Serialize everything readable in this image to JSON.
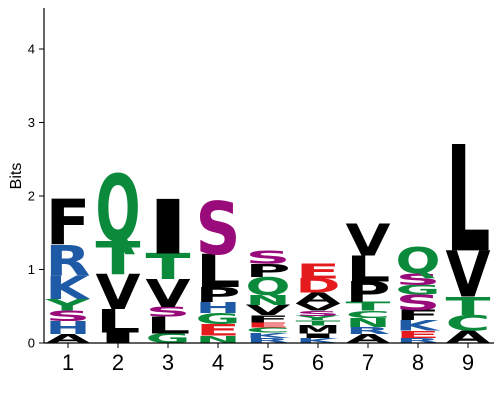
{
  "chart_data": {
    "type": "sequence-logo",
    "ylabel": "Bits",
    "ylim": [
      0,
      4.6
    ],
    "yticks": [
      "0",
      "1",
      "2",
      "3",
      "4"
    ],
    "colors": {
      "A": "#000000",
      "C": "#0b8a3c",
      "D": "#e41a1c",
      "E": "#e41a1c",
      "F": "#000000",
      "G": "#0b8a3c",
      "H": "#1f5aa6",
      "I": "#000000",
      "K": "#1f5aa6",
      "L": "#000000",
      "M": "#000000",
      "N": "#0b8a3c",
      "P": "#000000",
      "Q": "#0b8a3c",
      "R": "#1f5aa6",
      "S": "#990a7a",
      "T": "#0b8a3c",
      "V": "#000000",
      "W": "#000000",
      "Y": "#0b8a3c"
    },
    "positions": [
      {
        "label": "1",
        "stack": [
          {
            "letter": "A",
            "height": 0.12
          },
          {
            "letter": "H",
            "height": 0.18
          },
          {
            "letter": "S",
            "height": 0.14
          },
          {
            "letter": "Y",
            "height": 0.16
          },
          {
            "letter": "K",
            "height": 0.32
          },
          {
            "letter": "R",
            "height": 0.42
          },
          {
            "letter": "F",
            "height": 0.62
          }
        ]
      },
      {
        "label": "2",
        "stack": [
          {
            "letter": "I",
            "height": 0.14
          },
          {
            "letter": "L",
            "height": 0.32
          },
          {
            "letter": "V",
            "height": 0.48
          },
          {
            "letter": "T",
            "height": 0.45
          },
          {
            "letter": "Q",
            "height": 0.91
          }
        ]
      },
      {
        "label": "3",
        "stack": [
          {
            "letter": "G",
            "height": 0.13
          },
          {
            "letter": "L",
            "height": 0.23
          },
          {
            "letter": "S",
            "height": 0.13
          },
          {
            "letter": "V",
            "height": 0.38
          },
          {
            "letter": "T",
            "height": 0.35
          },
          {
            "letter": "I",
            "height": 0.74
          }
        ]
      },
      {
        "label": "4",
        "stack": [
          {
            "letter": "N",
            "height": 0.1
          },
          {
            "letter": "E",
            "height": 0.16
          },
          {
            "letter": "G",
            "height": 0.15
          },
          {
            "letter": "H",
            "height": 0.15
          },
          {
            "letter": "P",
            "height": 0.2
          },
          {
            "letter": "L",
            "height": 0.45
          },
          {
            "letter": "S",
            "height": 0.72
          }
        ]
      },
      {
        "label": "5",
        "stack": [
          {
            "letter": "R",
            "height": 0.07
          },
          {
            "letter": "K",
            "height": 0.07
          },
          {
            "letter": "C",
            "height": 0.07
          },
          {
            "letter": "E",
            "height": 0.07
          },
          {
            "letter": "F",
            "height": 0.1
          },
          {
            "letter": "V",
            "height": 0.14
          },
          {
            "letter": "N",
            "height": 0.13
          },
          {
            "letter": "Q",
            "height": 0.25
          },
          {
            "letter": "P",
            "height": 0.18
          },
          {
            "letter": "S",
            "height": 0.18
          }
        ]
      },
      {
        "label": "6",
        "stack": [
          {
            "letter": "K",
            "height": 0.07
          },
          {
            "letter": "I",
            "height": 0.06
          },
          {
            "letter": "M",
            "height": 0.11
          },
          {
            "letter": "T",
            "height": 0.07
          },
          {
            "letter": "Y",
            "height": 0.06
          },
          {
            "letter": "S",
            "height": 0.07
          },
          {
            "letter": "V",
            "height": 0.1
          },
          {
            "letter": "A",
            "height": 0.15
          },
          {
            "letter": "D",
            "height": 0.19
          },
          {
            "letter": "E",
            "height": 0.2
          }
        ]
      },
      {
        "label": "7",
        "stack": [
          {
            "letter": "A",
            "height": 0.12
          },
          {
            "letter": "R",
            "height": 0.1
          },
          {
            "letter": "N",
            "height": 0.12
          },
          {
            "letter": "C",
            "height": 0.1
          },
          {
            "letter": "T",
            "height": 0.12
          },
          {
            "letter": "P",
            "height": 0.28
          },
          {
            "letter": "L",
            "height": 0.35
          },
          {
            "letter": "V",
            "height": 0.43
          }
        ]
      },
      {
        "label": "8",
        "stack": [
          {
            "letter": "R",
            "height": 0.07
          },
          {
            "letter": "E",
            "height": 0.1
          },
          {
            "letter": "K",
            "height": 0.14
          },
          {
            "letter": "F",
            "height": 0.14
          },
          {
            "letter": "S",
            "height": 0.21
          },
          {
            "letter": "G",
            "height": 0.13
          },
          {
            "letter": "S",
            "height": 0.16
          },
          {
            "letter": "Q",
            "height": 0.35
          }
        ]
      },
      {
        "label": "9",
        "stack": [
          {
            "letter": "A",
            "height": 0.17
          },
          {
            "letter": "C",
            "height": 0.21
          },
          {
            "letter": "T",
            "height": 0.25
          },
          {
            "letter": "V",
            "height": 0.63
          },
          {
            "letter": "L",
            "height": 1.45
          }
        ]
      }
    ]
  }
}
